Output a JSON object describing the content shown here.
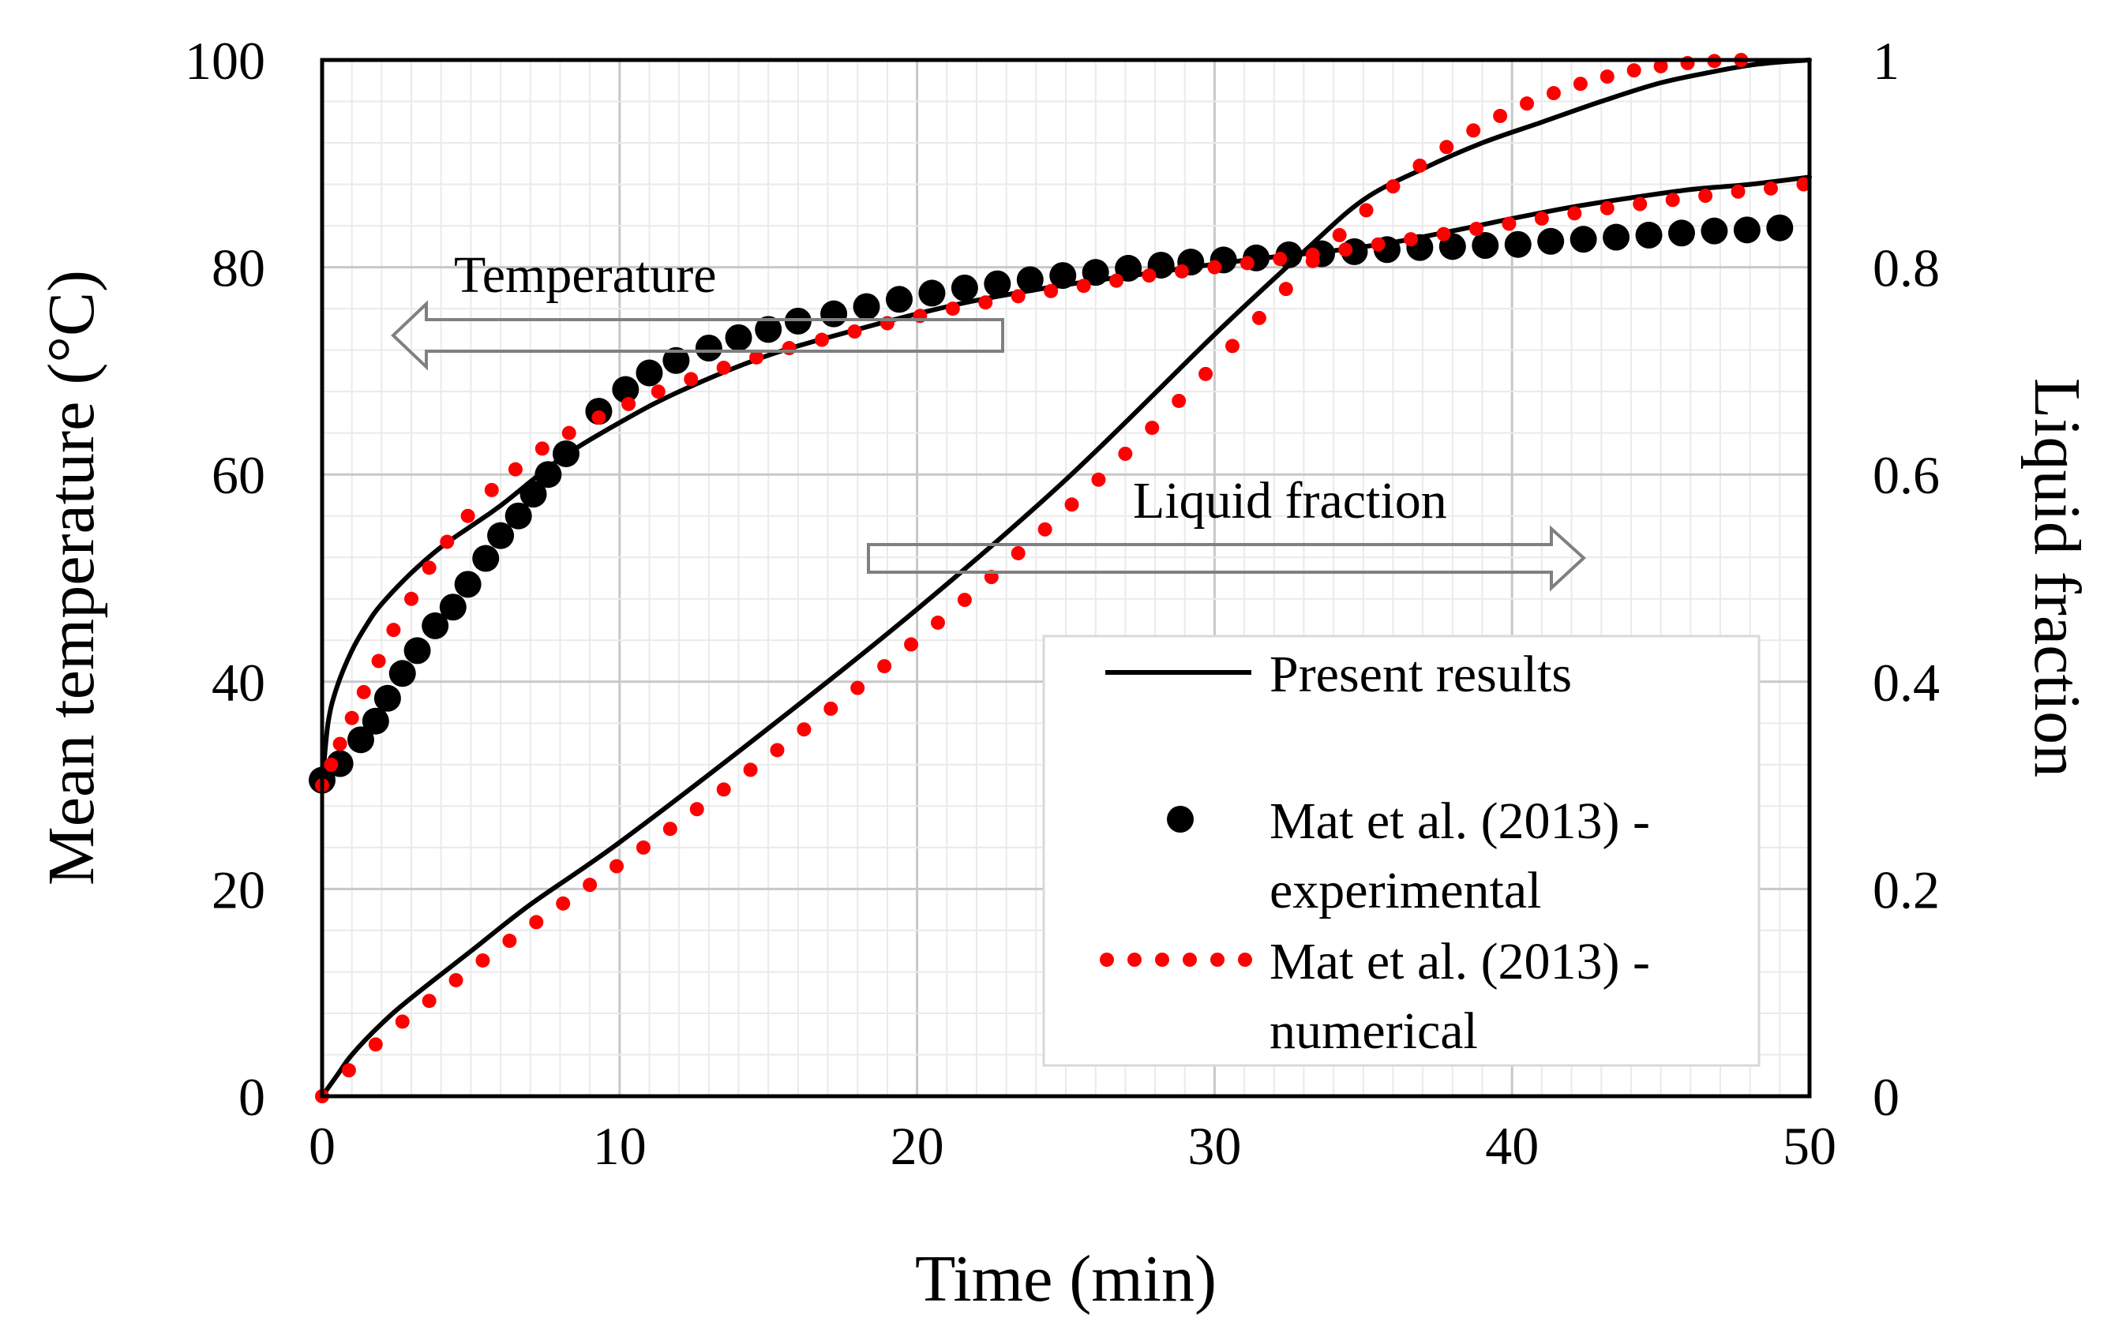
{
  "chart_data": {
    "type": "line",
    "title": "",
    "xlabel": "Time (min)",
    "ylabel": "Mean temperature (°C)",
    "y2label": "Liquid fraction",
    "xlim": [
      0,
      50
    ],
    "ylim": [
      0,
      100
    ],
    "y2lim": [
      0,
      1
    ],
    "xticks": [
      "0",
      "10",
      "20",
      "30",
      "40",
      "50"
    ],
    "yticks": [
      "0",
      "20",
      "40",
      "60",
      "80",
      "100"
    ],
    "y2ticks": [
      "0",
      "0.2",
      "0.4",
      "0.6",
      "0.8",
      "1"
    ],
    "grid": true,
    "legend_position": "bottom-right",
    "annotations": [
      {
        "text": "Temperature",
        "arrow": "left",
        "axis": "left"
      },
      {
        "text": "Liquid fraction",
        "arrow": "right",
        "axis": "right"
      }
    ],
    "legend": [
      {
        "label": "Present results",
        "style": "solid-black-line"
      },
      {
        "label": "Mat et al. (2013) -",
        "label2": "experimental",
        "style": "black-dots"
      },
      {
        "label": "Mat et al. (2013) -",
        "label2": "numerical",
        "style": "red-dotted"
      }
    ],
    "series": [
      {
        "name": "Present results - temperature",
        "axis": "left",
        "style": "solid-black-line",
        "x": [
          0,
          0.2,
          0.5,
          1,
          1.5,
          2,
          3,
          4,
          5,
          6,
          8,
          10,
          12,
          15,
          18,
          20,
          22,
          25,
          28,
          30,
          32,
          34,
          36,
          38,
          40,
          42,
          44,
          46,
          48,
          50
        ],
        "y": [
          30,
          36,
          39.5,
          43,
          45.5,
          47.5,
          50.5,
          53,
          55,
          57,
          61.5,
          65,
          68,
          71.5,
          74,
          75.5,
          76.8,
          78.3,
          79.5,
          80.3,
          81,
          81.6,
          82.4,
          83.5,
          84.7,
          85.8,
          86.7,
          87.5,
          88,
          88.7
        ]
      },
      {
        "name": "Present results - liquid fraction",
        "axis": "right",
        "style": "solid-black-line",
        "x": [
          0,
          0.5,
          1,
          2,
          3,
          5,
          7,
          10,
          15,
          20,
          25,
          30,
          33,
          35,
          37,
          39,
          41,
          43,
          45,
          47,
          48,
          49,
          50
        ],
        "y": [
          0,
          0.02,
          0.04,
          0.07,
          0.095,
          0.14,
          0.185,
          0.245,
          0.355,
          0.47,
          0.595,
          0.735,
          0.815,
          0.865,
          0.895,
          0.92,
          0.94,
          0.96,
          0.978,
          0.99,
          0.995,
          0.998,
          1.0
        ]
      },
      {
        "name": "Mat et al. (2013) - experimental",
        "axis": "left",
        "style": "black-dots",
        "x": [
          0,
          0.6,
          1.3,
          1.8,
          2.2,
          2.7,
          3.2,
          3.8,
          4.4,
          4.9,
          5.5,
          6,
          6.6,
          7.1,
          7.6,
          8.2,
          9.3,
          10.2,
          11,
          11.9,
          13,
          14,
          15,
          16,
          17.2,
          18.3,
          19.4,
          20.5,
          21.6,
          22.7,
          23.8,
          24.9,
          26,
          27.1,
          28.2,
          29.2,
          30.3,
          31.4,
          32.5,
          33.6,
          34.7,
          35.8,
          36.9,
          38,
          39.1,
          40.2,
          41.3,
          42.4,
          43.5,
          44.6,
          45.7,
          46.8,
          47.9,
          49
        ],
        "y": [
          30.5,
          32.1,
          34.4,
          36.2,
          38.4,
          40.8,
          43,
          45.4,
          47.2,
          49.4,
          51.9,
          54.1,
          56,
          58.1,
          60,
          62,
          66.1,
          68.2,
          69.8,
          71,
          72.2,
          73.2,
          74,
          74.8,
          75.5,
          76.2,
          76.9,
          77.5,
          78,
          78.4,
          78.8,
          79.2,
          79.5,
          79.9,
          80.2,
          80.5,
          80.7,
          80.9,
          81.2,
          81.3,
          81.5,
          81.7,
          81.9,
          82,
          82.1,
          82.2,
          82.5,
          82.7,
          82.9,
          83.1,
          83.3,
          83.5,
          83.6,
          83.8
        ]
      },
      {
        "name": "Mat et al. (2013) - numerical - temperature",
        "axis": "left",
        "style": "red-dotted",
        "x": [
          0,
          0.3,
          0.6,
          1,
          1.4,
          1.9,
          2.4,
          3,
          3.6,
          4.2,
          4.9,
          5.7,
          6.5,
          7.4,
          8.3,
          9.3,
          10.3,
          11.3,
          12.4,
          13.5,
          14.6,
          15.7,
          16.8,
          17.9,
          19,
          20.1,
          21.2,
          22.3,
          23.4,
          24.5,
          25.6,
          26.7,
          27.8,
          28.9,
          30,
          31.1,
          32.2,
          33.3,
          34.4,
          35.5,
          36.6,
          37.7,
          38.8,
          39.9,
          41,
          42.1,
          43.2,
          44.3,
          45.4,
          46.5,
          47.6,
          48.7,
          49.8
        ],
        "y": [
          30,
          32,
          34,
          36.5,
          39,
          42,
          45,
          48,
          51,
          53.5,
          56,
          58.5,
          60.5,
          62.5,
          64,
          65.5,
          66.8,
          68,
          69.2,
          70.3,
          71.3,
          72.2,
          73,
          73.8,
          74.6,
          75.3,
          76,
          76.6,
          77.2,
          77.7,
          78.2,
          78.7,
          79.2,
          79.6,
          80,
          80.4,
          80.8,
          81.2,
          81.7,
          82.2,
          82.7,
          83.2,
          83.7,
          84.2,
          84.7,
          85.2,
          85.7,
          86.1,
          86.5,
          86.9,
          87.3,
          87.6,
          88
        ]
      },
      {
        "name": "Mat et al. (2013) - numerical - liquid fraction",
        "axis": "right",
        "style": "red-dotted",
        "x": [
          0,
          0.9,
          1.8,
          2.7,
          3.6,
          4.5,
          5.4,
          6.3,
          7.2,
          8.1,
          9,
          9.9,
          10.8,
          11.7,
          12.6,
          13.5,
          14.4,
          15.3,
          16.2,
          17.1,
          18,
          18.9,
          19.8,
          20.7,
          21.6,
          22.5,
          23.4,
          24.3,
          25.2,
          26.1,
          27,
          27.9,
          28.8,
          29.7,
          30.6,
          31.5,
          32.4,
          33.3,
          34.2,
          35.1,
          36,
          36.9,
          37.8,
          38.7,
          39.6,
          40.5,
          41.4,
          42.3,
          43.2,
          44.1,
          45,
          45.9,
          46.8,
          47.7
        ],
        "y": [
          0,
          0.025,
          0.05,
          0.072,
          0.092,
          0.112,
          0.131,
          0.15,
          0.168,
          0.186,
          0.204,
          0.222,
          0.24,
          0.258,
          0.277,
          0.296,
          0.315,
          0.334,
          0.354,
          0.374,
          0.394,
          0.415,
          0.436,
          0.457,
          0.479,
          0.501,
          0.524,
          0.547,
          0.571,
          0.595,
          0.62,
          0.645,
          0.671,
          0.697,
          0.724,
          0.751,
          0.779,
          0.806,
          0.831,
          0.855,
          0.878,
          0.898,
          0.916,
          0.932,
          0.946,
          0.958,
          0.968,
          0.977,
          0.984,
          0.99,
          0.994,
          0.997,
          0.999,
          1.0
        ]
      }
    ]
  }
}
